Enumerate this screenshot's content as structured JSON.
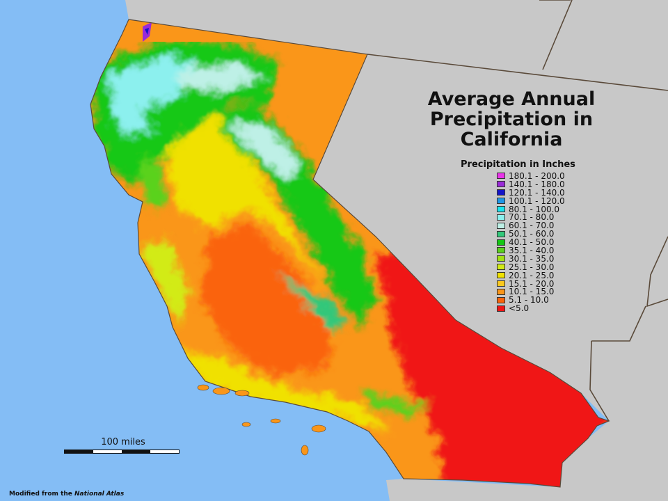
{
  "map": {
    "title_lines": [
      "Average Annual",
      "Precipitation in",
      "California"
    ],
    "colors": {
      "ocean": "#84bdf5",
      "land_outside": "#c8c8c8",
      "border": "#5a4a3a"
    },
    "legend": {
      "title": "Precipitation in Inches",
      "items": [
        {
          "label": "180.1 - 200.0",
          "color": "#e834e8"
        },
        {
          "label": "140.1 - 180.0",
          "color": "#9a2bd8"
        },
        {
          "label": "120.1 - 140.0",
          "color": "#1414c8"
        },
        {
          "label": "100.1 - 120.0",
          "color": "#1e96e6"
        },
        {
          "label": "80.1 - 100.0",
          "color": "#19e6f0"
        },
        {
          "label": "70.1 - 80.0",
          "color": "#8cf0ee"
        },
        {
          "label": "60.1 - 70.0",
          "color": "#bef0e6"
        },
        {
          "label": "50.1 - 60.0",
          "color": "#32c87a"
        },
        {
          "label": "40.1 - 50.0",
          "color": "#14c814"
        },
        {
          "label": "35.1 - 40.0",
          "color": "#5ad21e"
        },
        {
          "label": "30.1 - 35.0",
          "color": "#a0e114"
        },
        {
          "label": "25.1 - 30.0",
          "color": "#d2eb14"
        },
        {
          "label": "20.1 - 25.0",
          "color": "#f0e100"
        },
        {
          "label": "15.1 - 20.0",
          "color": "#fac81e"
        },
        {
          "label": "10.1 - 15.0",
          "color": "#fa9619"
        },
        {
          "label": "5.1 - 10.0",
          "color": "#fa640a"
        },
        {
          "label": "<5.0",
          "color": "#f01414"
        }
      ]
    },
    "scale_label": "100 miles",
    "credit_prefix": "Modified from the ",
    "credit_source": "National Atlas"
  }
}
